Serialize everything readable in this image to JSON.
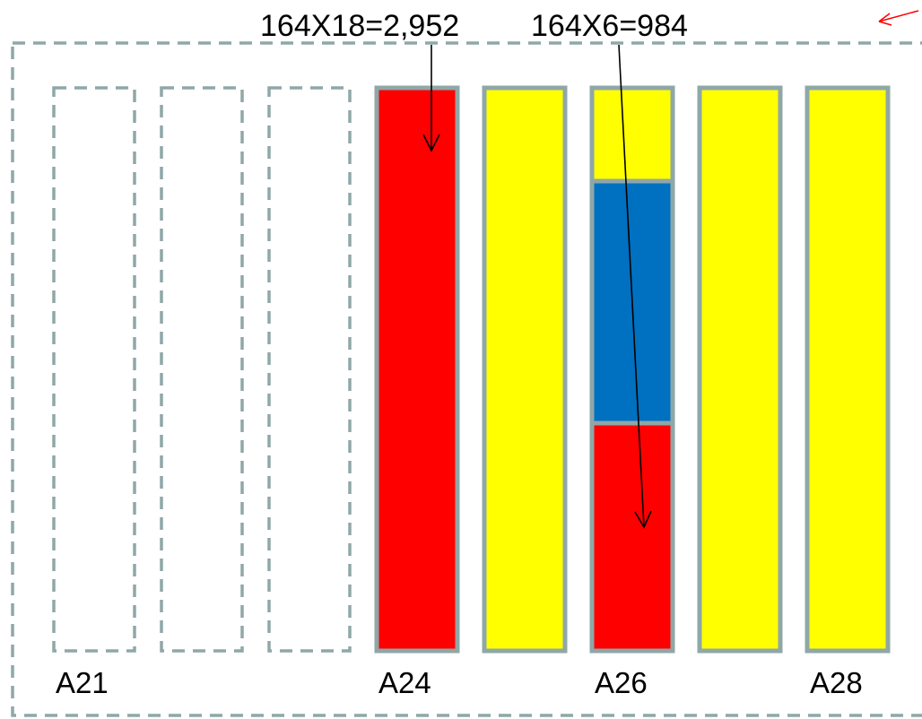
{
  "annotations": {
    "left": "164X18=2,952",
    "right": "164X6=984"
  },
  "colors": {
    "outline": "#8fa7a7",
    "red": "#ff0000",
    "yellow": "#ffff00",
    "blue": "#0070c0",
    "arrow": "#000000",
    "corner_arrow": "#ff0000"
  },
  "bay_labels": {
    "a21": "A21",
    "a24": "A24",
    "a26": "A26",
    "a28": "A28"
  },
  "bays": [
    {
      "id": "bay-1",
      "state": "empty"
    },
    {
      "id": "bay-2",
      "state": "empty"
    },
    {
      "id": "bay-3",
      "state": "empty"
    },
    {
      "id": "bay-4",
      "state": "filled",
      "fill": "red"
    },
    {
      "id": "bay-5",
      "state": "filled",
      "fill": "yellow"
    },
    {
      "id": "bay-6",
      "state": "stacked",
      "fills": [
        "yellow",
        "blue",
        "red"
      ]
    },
    {
      "id": "bay-7",
      "state": "filled",
      "fill": "yellow"
    },
    {
      "id": "bay-8",
      "state": "filled",
      "fill": "yellow"
    }
  ]
}
